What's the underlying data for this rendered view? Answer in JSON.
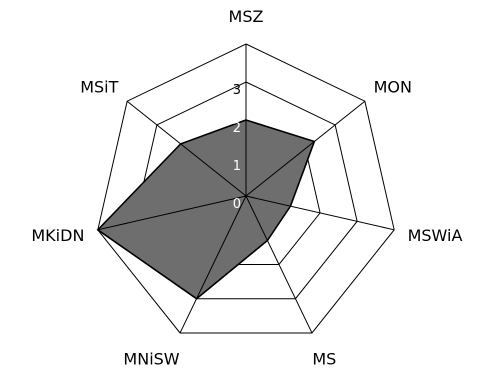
{
  "chart_data": {
    "type": "radar",
    "axes": [
      "MSZ",
      "MON",
      "MSWiA",
      "MS",
      "MNiSW",
      "MKiDN",
      "MSiT"
    ],
    "series": [
      {
        "values": [
          2,
          2.3,
          1.2,
          1.3,
          3,
          4,
          2.2
        ]
      }
    ],
    "rlim": [
      0,
      4
    ],
    "ticks": [
      0,
      1,
      2,
      3
    ],
    "grid": true,
    "colors": {
      "fill": "#6e6e6e",
      "stroke": "#000000",
      "grid": "#000000",
      "tick_on_fill": "#ffffff",
      "tick_off_fill": "#000000"
    }
  }
}
